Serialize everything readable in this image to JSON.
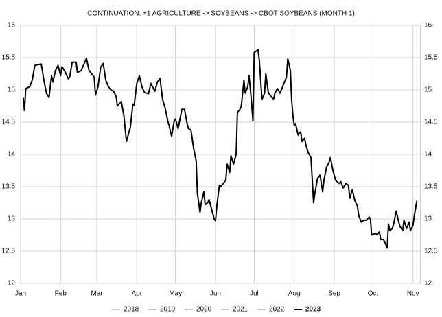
{
  "chart_data": {
    "type": "line",
    "title": "CONTINUATION: +1 AGRICULTURE -> SOYBEANS -> CBOT SOYBEANS (MONTH 1)",
    "xlim": [
      0,
      310
    ],
    "xticks": [
      {
        "value": 0,
        "label": "Jan"
      },
      {
        "value": 31,
        "label": "Feb"
      },
      {
        "value": 59,
        "label": "Mar"
      },
      {
        "value": 90,
        "label": "Apr"
      },
      {
        "value": 120,
        "label": "May"
      },
      {
        "value": 151,
        "label": "Jun"
      },
      {
        "value": 181,
        "label": "Jul"
      },
      {
        "value": 212,
        "label": "Aug"
      },
      {
        "value": 243,
        "label": "Sep"
      },
      {
        "value": 273,
        "label": "Oct"
      },
      {
        "value": 304,
        "label": "Nov"
      }
    ],
    "ylim": [
      12,
      16
    ],
    "yticks": [
      12,
      12.5,
      13,
      13.5,
      14,
      14.5,
      15,
      15.5,
      16
    ],
    "grid": true,
    "legend": "bottom",
    "x": [
      2,
      3,
      4,
      7,
      9,
      11,
      16,
      18,
      20,
      22,
      24,
      25,
      27,
      29,
      31,
      32,
      34,
      37,
      38,
      40,
      43,
      44,
      47,
      51,
      53,
      57,
      58,
      60,
      62,
      64,
      66,
      68,
      70,
      72,
      74,
      75,
      78,
      80,
      82,
      84,
      85,
      87,
      88,
      90,
      92,
      94,
      96,
      99,
      101,
      104,
      106,
      108,
      110,
      112,
      114,
      115,
      117,
      119,
      120,
      122,
      123,
      125,
      127,
      129,
      130,
      132,
      134,
      136,
      137,
      139,
      140,
      142,
      143,
      145,
      146,
      148,
      150,
      151,
      152,
      154,
      155,
      157,
      159,
      160,
      162,
      163,
      165,
      167,
      168,
      170,
      171,
      173,
      174,
      176,
      177,
      179,
      180,
      181,
      184,
      185,
      187,
      189,
      190,
      192,
      194,
      196,
      197,
      199,
      201,
      202,
      204,
      206,
      207,
      209,
      210,
      211,
      212,
      213,
      215,
      217,
      218,
      220,
      221,
      223,
      225,
      227,
      228,
      230,
      232,
      234,
      235,
      237,
      239,
      240,
      242,
      244,
      245,
      247,
      248,
      250,
      252,
      254,
      255,
      257,
      259,
      261,
      262,
      264,
      266,
      268,
      270,
      271,
      272,
      275,
      276,
      278,
      279,
      281,
      282,
      284,
      285,
      286,
      288,
      289,
      291,
      293,
      294,
      296,
      297,
      299,
      301,
      302,
      304,
      305,
      307
    ],
    "series": [
      {
        "name": "2018",
        "color": "#888888",
        "width": 1,
        "values": null
      },
      {
        "name": "2019",
        "color": "#888888",
        "width": 1,
        "values": null
      },
      {
        "name": "2020",
        "color": "#888888",
        "width": 1,
        "values": null
      },
      {
        "name": "2021",
        "color": "#888888",
        "width": 1,
        "values": null
      },
      {
        "name": "2022",
        "color": "#888888",
        "width": 1,
        "values": null
      },
      {
        "name": "2023",
        "color": "#000000",
        "width": 2,
        "values": [
          14.88,
          14.68,
          15.02,
          15.05,
          15.15,
          15.38,
          15.4,
          15.15,
          14.95,
          14.88,
          15.22,
          15.12,
          15.3,
          15.38,
          15.22,
          15.36,
          15.3,
          15.17,
          15.2,
          15.43,
          15.43,
          15.27,
          15.3,
          15.49,
          15.3,
          15.2,
          14.92,
          15.05,
          15.35,
          15.41,
          15.15,
          15.05,
          15.0,
          14.98,
          14.9,
          14.75,
          14.82,
          14.6,
          14.2,
          14.35,
          14.42,
          14.78,
          14.76,
          15.1,
          15.22,
          15.05,
          14.96,
          14.94,
          15.1,
          14.98,
          15.12,
          15.18,
          14.85,
          14.72,
          14.52,
          14.45,
          14.28,
          14.52,
          14.55,
          14.4,
          14.5,
          14.7,
          14.7,
          14.48,
          14.4,
          14.38,
          14.1,
          13.9,
          13.4,
          13.1,
          13.25,
          13.42,
          13.22,
          13.25,
          13.3,
          13.15,
          13.0,
          12.97,
          13.2,
          13.52,
          13.5,
          13.55,
          13.6,
          13.85,
          13.72,
          13.98,
          13.85,
          14.0,
          14.65,
          14.7,
          14.75,
          15.15,
          14.95,
          15.05,
          15.22,
          14.8,
          14.52,
          15.58,
          15.62,
          15.45,
          14.85,
          14.95,
          15.25,
          14.95,
          14.9,
          14.85,
          14.95,
          15.02,
          14.95,
          15.0,
          15.1,
          15.2,
          15.48,
          15.3,
          14.85,
          14.6,
          14.45,
          14.48,
          14.3,
          14.35,
          14.2,
          14.25,
          14.15,
          14.02,
          13.95,
          13.25,
          13.4,
          13.62,
          13.68,
          13.42,
          13.6,
          13.8,
          13.88,
          13.95,
          13.75,
          13.6,
          13.58,
          13.55,
          13.58,
          13.48,
          13.55,
          13.52,
          13.32,
          13.45,
          13.28,
          13.2,
          13.05,
          12.95,
          12.98,
          12.98,
          13.03,
          13.0,
          12.75,
          12.78,
          12.75,
          12.8,
          12.68,
          12.68,
          12.65,
          12.55,
          12.92,
          12.82,
          12.85,
          12.92,
          13.12,
          12.95,
          12.88,
          12.82,
          12.98,
          12.85,
          12.95,
          12.82,
          12.9,
          13.05,
          13.28
        ]
      }
    ]
  }
}
